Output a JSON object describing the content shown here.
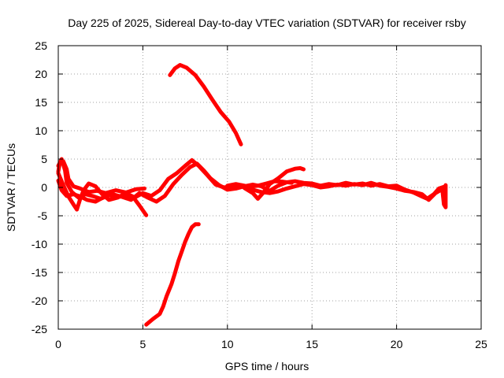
{
  "chart_data": {
    "type": "line",
    "title": "Day 225 of 2025, Sidereal Day-to-day VTEC variation (SDTVAR) for receiver rsby",
    "xlabel": "GPS time / hours",
    "ylabel": "SDTVAR / TECUs",
    "xlim": [
      0,
      25
    ],
    "ylim": [
      -25,
      25
    ],
    "xticks": [
      0,
      5,
      10,
      15,
      20,
      25
    ],
    "yticks": [
      -25,
      -20,
      -15,
      -10,
      -5,
      0,
      5,
      10,
      15,
      20,
      25
    ],
    "grid": true,
    "color": "#ff0000",
    "series": [
      {
        "name": "arc-upper-high",
        "points": [
          [
            6.6,
            19.8
          ],
          [
            6.9,
            21.0
          ],
          [
            7.2,
            21.6
          ],
          [
            7.6,
            21.1
          ],
          [
            8.1,
            19.8
          ],
          [
            8.6,
            17.8
          ],
          [
            9.1,
            15.5
          ],
          [
            9.6,
            13.3
          ],
          [
            10.1,
            11.6
          ],
          [
            10.5,
            9.6
          ],
          [
            10.8,
            7.6
          ]
        ]
      },
      {
        "name": "arc-lower-low",
        "points": [
          [
            5.2,
            -24.2
          ],
          [
            5.6,
            -23.2
          ],
          [
            6.0,
            -22.3
          ],
          [
            6.2,
            -21.0
          ],
          [
            6.4,
            -19.2
          ],
          [
            6.7,
            -17.0
          ],
          [
            6.9,
            -15.1
          ],
          [
            7.1,
            -13.0
          ],
          [
            7.3,
            -11.3
          ],
          [
            7.5,
            -9.6
          ],
          [
            7.7,
            -8.2
          ],
          [
            7.9,
            -7.0
          ],
          [
            8.1,
            -6.5
          ],
          [
            8.3,
            -6.5
          ]
        ]
      },
      {
        "name": "arc-a",
        "points": [
          [
            0.0,
            3.8
          ],
          [
            0.2,
            5.0
          ],
          [
            0.4,
            3.0
          ],
          [
            0.5,
            0.8
          ],
          [
            0.8,
            -0.8
          ],
          [
            1.2,
            -1.8
          ],
          [
            1.6,
            -1.2
          ],
          [
            2.0,
            -1.5
          ],
          [
            2.5,
            -2.0
          ],
          [
            3.0,
            -1.4
          ],
          [
            3.5,
            -1.7
          ],
          [
            4.0,
            -1.5
          ],
          [
            4.5,
            -1.8
          ],
          [
            5.0,
            -1.0
          ],
          [
            5.5,
            -1.5
          ],
          [
            6.0,
            -0.5
          ],
          [
            6.5,
            1.5
          ],
          [
            7.0,
            2.5
          ],
          [
            7.5,
            3.8
          ],
          [
            7.9,
            4.8
          ],
          [
            8.3,
            3.8
          ],
          [
            8.8,
            2.2
          ],
          [
            9.3,
            0.5
          ],
          [
            9.8,
            0.0
          ],
          [
            10.3,
            0.2
          ],
          [
            10.8,
            0.4
          ],
          [
            11.3,
            0.1
          ],
          [
            11.8,
            0.3
          ],
          [
            12.3,
            0.7
          ],
          [
            12.8,
            1.1
          ],
          [
            13.3,
            1.0
          ],
          [
            13.8,
            0.8
          ]
        ]
      },
      {
        "name": "arc-b",
        "points": [
          [
            0.0,
            2.5
          ],
          [
            0.3,
            0.4
          ],
          [
            0.6,
            -1.6
          ],
          [
            0.9,
            -3.0
          ],
          [
            1.1,
            -3.9
          ],
          [
            1.3,
            -2.0
          ],
          [
            1.5,
            -0.5
          ],
          [
            1.8,
            0.7
          ],
          [
            2.2,
            0.2
          ],
          [
            2.6,
            -1.2
          ],
          [
            3.0,
            -2.2
          ],
          [
            3.5,
            -1.8
          ],
          [
            4.0,
            -1.0
          ],
          [
            4.4,
            -1.6
          ],
          [
            4.8,
            -3.2
          ],
          [
            5.2,
            -4.9
          ]
        ]
      },
      {
        "name": "arc-c",
        "points": [
          [
            0.0,
            1.2
          ],
          [
            0.2,
            -0.5
          ],
          [
            0.5,
            -1.5
          ],
          [
            0.9,
            -1.2
          ],
          [
            1.3,
            -1.6
          ],
          [
            1.7,
            -2.2
          ],
          [
            2.2,
            -2.5
          ],
          [
            2.7,
            -1.7
          ],
          [
            3.2,
            -1.2
          ],
          [
            3.7,
            -1.6
          ],
          [
            4.3,
            -2.2
          ],
          [
            4.8,
            -1.0
          ],
          [
            5.3,
            -1.8
          ],
          [
            5.8,
            -2.5
          ],
          [
            6.3,
            -1.5
          ],
          [
            6.8,
            0.6
          ],
          [
            7.3,
            2.2
          ],
          [
            7.8,
            3.6
          ],
          [
            8.2,
            4.2
          ],
          [
            8.6,
            3.0
          ],
          [
            9.0,
            1.6
          ],
          [
            9.5,
            0.4
          ],
          [
            10.0,
            -0.4
          ],
          [
            10.5,
            -0.2
          ],
          [
            11.0,
            0.2
          ],
          [
            11.5,
            0.5
          ],
          [
            12.0,
            0.2
          ],
          [
            12.5,
            -0.6
          ],
          [
            13.0,
            0.3
          ],
          [
            13.5,
            0.9
          ],
          [
            14.0,
            1.1
          ],
          [
            14.5,
            0.8
          ],
          [
            15.0,
            0.7
          ],
          [
            15.5,
            0.3
          ],
          [
            16.0,
            0.6
          ],
          [
            16.5,
            0.4
          ],
          [
            17.0,
            0.8
          ],
          [
            17.5,
            0.5
          ],
          [
            18.0,
            0.7
          ],
          [
            18.5,
            0.3
          ],
          [
            19.0,
            0.6
          ],
          [
            19.5,
            0.2
          ],
          [
            20.0,
            0.3
          ],
          [
            20.5,
            -0.4
          ],
          [
            21.0,
            -0.9
          ],
          [
            21.5,
            -1.6
          ],
          [
            21.8,
            -2.0
          ],
          [
            22.2,
            -1.2
          ],
          [
            22.5,
            -0.2
          ],
          [
            22.8,
            0.1
          ]
        ]
      },
      {
        "name": "arc-d",
        "points": [
          [
            0.0,
            2.8
          ],
          [
            0.1,
            4.4
          ],
          [
            0.3,
            4.6
          ],
          [
            0.5,
            3.2
          ],
          [
            0.6,
            1.5
          ],
          [
            0.9,
            0.2
          ],
          [
            1.3,
            -0.2
          ],
          [
            1.8,
            -0.8
          ],
          [
            2.3,
            -0.6
          ],
          [
            2.8,
            -1.0
          ],
          [
            3.4,
            -0.5
          ],
          [
            4.0,
            -0.9
          ],
          [
            4.6,
            -0.3
          ],
          [
            5.1,
            -0.2
          ]
        ]
      },
      {
        "name": "arc-e",
        "points": [
          [
            10.0,
            0.3
          ],
          [
            10.5,
            0.6
          ],
          [
            11.0,
            0.3
          ],
          [
            11.5,
            -0.4
          ],
          [
            12.0,
            -0.8
          ],
          [
            12.5,
            -1.0
          ],
          [
            13.0,
            -0.7
          ],
          [
            13.5,
            -0.2
          ],
          [
            14.0,
            0.2
          ],
          [
            14.5,
            0.6
          ],
          [
            15.0,
            0.4
          ],
          [
            15.5,
            0.0
          ],
          [
            16.0,
            0.2
          ],
          [
            16.5,
            0.5
          ],
          [
            17.0,
            0.3
          ],
          [
            17.5,
            0.6
          ],
          [
            18.0,
            0.4
          ],
          [
            18.5,
            0.8
          ],
          [
            19.0,
            0.3
          ],
          [
            19.5,
            0.1
          ],
          [
            20.0,
            -0.2
          ],
          [
            20.5,
            -0.6
          ],
          [
            21.0,
            -0.8
          ],
          [
            21.5,
            -1.2
          ],
          [
            21.9,
            -2.2
          ],
          [
            22.3,
            -1.0
          ],
          [
            22.7,
            -0.3
          ],
          [
            22.8,
            -3.0
          ],
          [
            22.9,
            -3.5
          ],
          [
            22.9,
            0.4
          ]
        ]
      },
      {
        "name": "arc-f",
        "points": [
          [
            11.0,
            -0.1
          ],
          [
            11.5,
            -1.0
          ],
          [
            11.8,
            -2.0
          ],
          [
            12.1,
            -1.0
          ],
          [
            12.5,
            0.6
          ],
          [
            13.0,
            1.6
          ],
          [
            13.5,
            2.8
          ],
          [
            14.0,
            3.3
          ],
          [
            14.3,
            3.4
          ],
          [
            14.5,
            3.2
          ]
        ]
      }
    ]
  }
}
